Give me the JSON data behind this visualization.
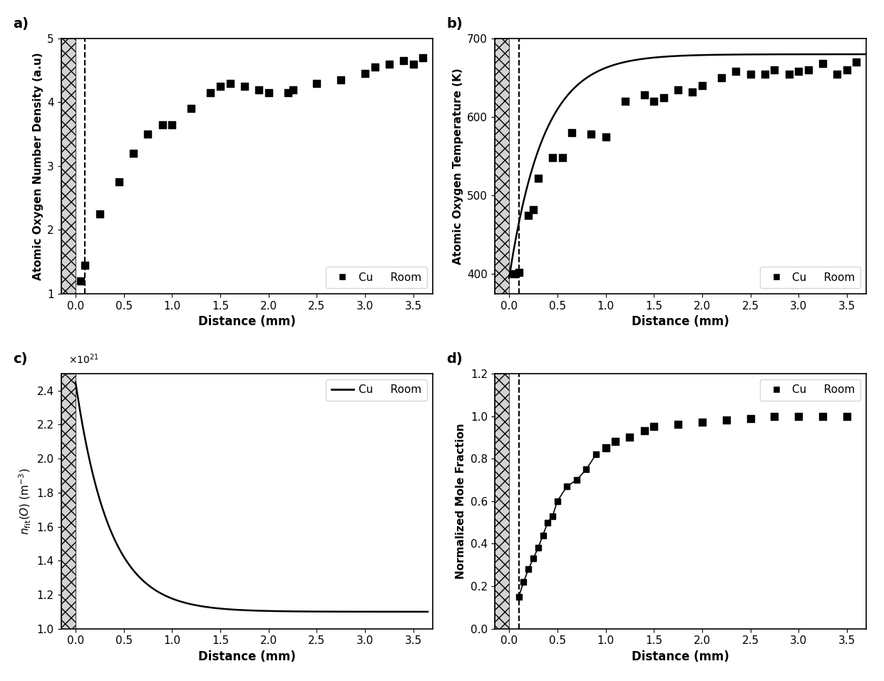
{
  "panel_a": {
    "label": "a)",
    "xlabel": "Distance (mm)",
    "ylabel": "Atomic Oxygen Number Density (a.u)",
    "ylim": [
      1,
      5
    ],
    "xlim": [
      -0.15,
      3.7
    ],
    "yticks": [
      1,
      2,
      3,
      4,
      5
    ],
    "xticks": [
      0.0,
      0.5,
      1.0,
      1.5,
      2.0,
      2.5,
      3.0,
      3.5
    ],
    "legend_label": "Cu     Room",
    "dashed_x": 0.1,
    "scatter_x": [
      0.05,
      0.1,
      0.25,
      0.45,
      0.6,
      0.75,
      0.9,
      1.0,
      1.2,
      1.4,
      1.5,
      1.6,
      1.75,
      1.9,
      2.0,
      2.2,
      2.25,
      2.5,
      2.75,
      3.0,
      3.1,
      3.25,
      3.4,
      3.5,
      3.6
    ],
    "scatter_y": [
      1.2,
      1.45,
      2.25,
      2.75,
      3.2,
      3.5,
      3.65,
      3.65,
      3.9,
      4.15,
      4.25,
      4.3,
      4.25,
      4.2,
      4.15,
      4.15,
      4.2,
      4.3,
      4.35,
      4.45,
      4.55,
      4.6,
      4.65,
      4.6,
      4.7
    ]
  },
  "panel_b": {
    "label": "b)",
    "xlabel": "Distance (mm)",
    "ylabel": "Atomic Oxygen Temperature (K)",
    "ylim": [
      375,
      700
    ],
    "xlim": [
      -0.15,
      3.7
    ],
    "yticks": [
      400,
      500,
      600,
      700
    ],
    "xticks": [
      0.0,
      0.5,
      1.0,
      1.5,
      2.0,
      2.5,
      3.0,
      3.5
    ],
    "legend_label": "Cu     Room",
    "dashed_x": 0.1,
    "scatter_x": [
      0.05,
      0.1,
      0.2,
      0.25,
      0.3,
      0.45,
      0.55,
      0.65,
      0.85,
      1.0,
      1.2,
      1.4,
      1.5,
      1.6,
      1.75,
      1.9,
      2.0,
      2.2,
      2.35,
      2.5,
      2.65,
      2.75,
      2.9,
      3.0,
      3.1,
      3.25,
      3.4,
      3.5,
      3.6
    ],
    "scatter_y": [
      400,
      402,
      475,
      482,
      522,
      548,
      548,
      580,
      578,
      575,
      620,
      628,
      620,
      625,
      635,
      632,
      640,
      650,
      658,
      655,
      655,
      660,
      655,
      658,
      660,
      668,
      655,
      660,
      670
    ],
    "curve_A": 680,
    "curve_B": 285,
    "curve_C": 2.8
  },
  "panel_c": {
    "label": "c)",
    "xlabel": "Distance (mm)",
    "ylabel": "n_fit_O_label",
    "ylim": [
      1.0,
      2.5
    ],
    "xlim": [
      -0.15,
      3.7
    ],
    "yticks": [
      1.0,
      1.2,
      1.4,
      1.6,
      1.8,
      2.0,
      2.2,
      2.4
    ],
    "xticks": [
      0.0,
      0.5,
      1.0,
      1.5,
      2.0,
      2.5,
      3.0,
      3.5
    ],
    "exponent": 21,
    "legend_label": "Cu     Room",
    "curve_A": 1.35,
    "curve_B": 1.1,
    "curve_tau": 0.35
  },
  "panel_d": {
    "label": "d)",
    "xlabel": "Distance (mm)",
    "ylabel": "Normalized Mole Fraction",
    "ylim": [
      0.0,
      1.2
    ],
    "xlim": [
      -0.15,
      3.7
    ],
    "yticks": [
      0.0,
      0.2,
      0.4,
      0.6,
      0.8,
      1.0,
      1.2
    ],
    "xticks": [
      0.0,
      0.5,
      1.0,
      1.5,
      2.0,
      2.5,
      3.0,
      3.5
    ],
    "legend_label": "Cu     Room",
    "dashed_x": 0.1,
    "scatter_x": [
      0.1,
      0.15,
      0.2,
      0.25,
      0.3,
      0.35,
      0.4,
      0.45,
      0.5,
      0.6,
      0.7,
      0.8,
      0.9,
      1.0,
      1.1,
      1.25,
      1.4,
      1.5,
      1.75,
      2.0,
      2.25,
      2.5,
      2.75,
      3.0,
      3.25,
      3.5
    ],
    "scatter_y": [
      0.15,
      0.22,
      0.28,
      0.33,
      0.38,
      0.44,
      0.5,
      0.53,
      0.6,
      0.67,
      0.7,
      0.75,
      0.82,
      0.85,
      0.88,
      0.9,
      0.93,
      0.95,
      0.96,
      0.97,
      0.98,
      0.99,
      1.0,
      1.0,
      1.0,
      1.0
    ],
    "line_cutoff_idx": 13
  },
  "hatch_x_start": -0.15,
  "hatch_x_end": 0.0,
  "dashed_x": 0.1,
  "marker": "s",
  "marker_size": 55,
  "marker_color": "black",
  "line_color": "black",
  "background_color": "white"
}
